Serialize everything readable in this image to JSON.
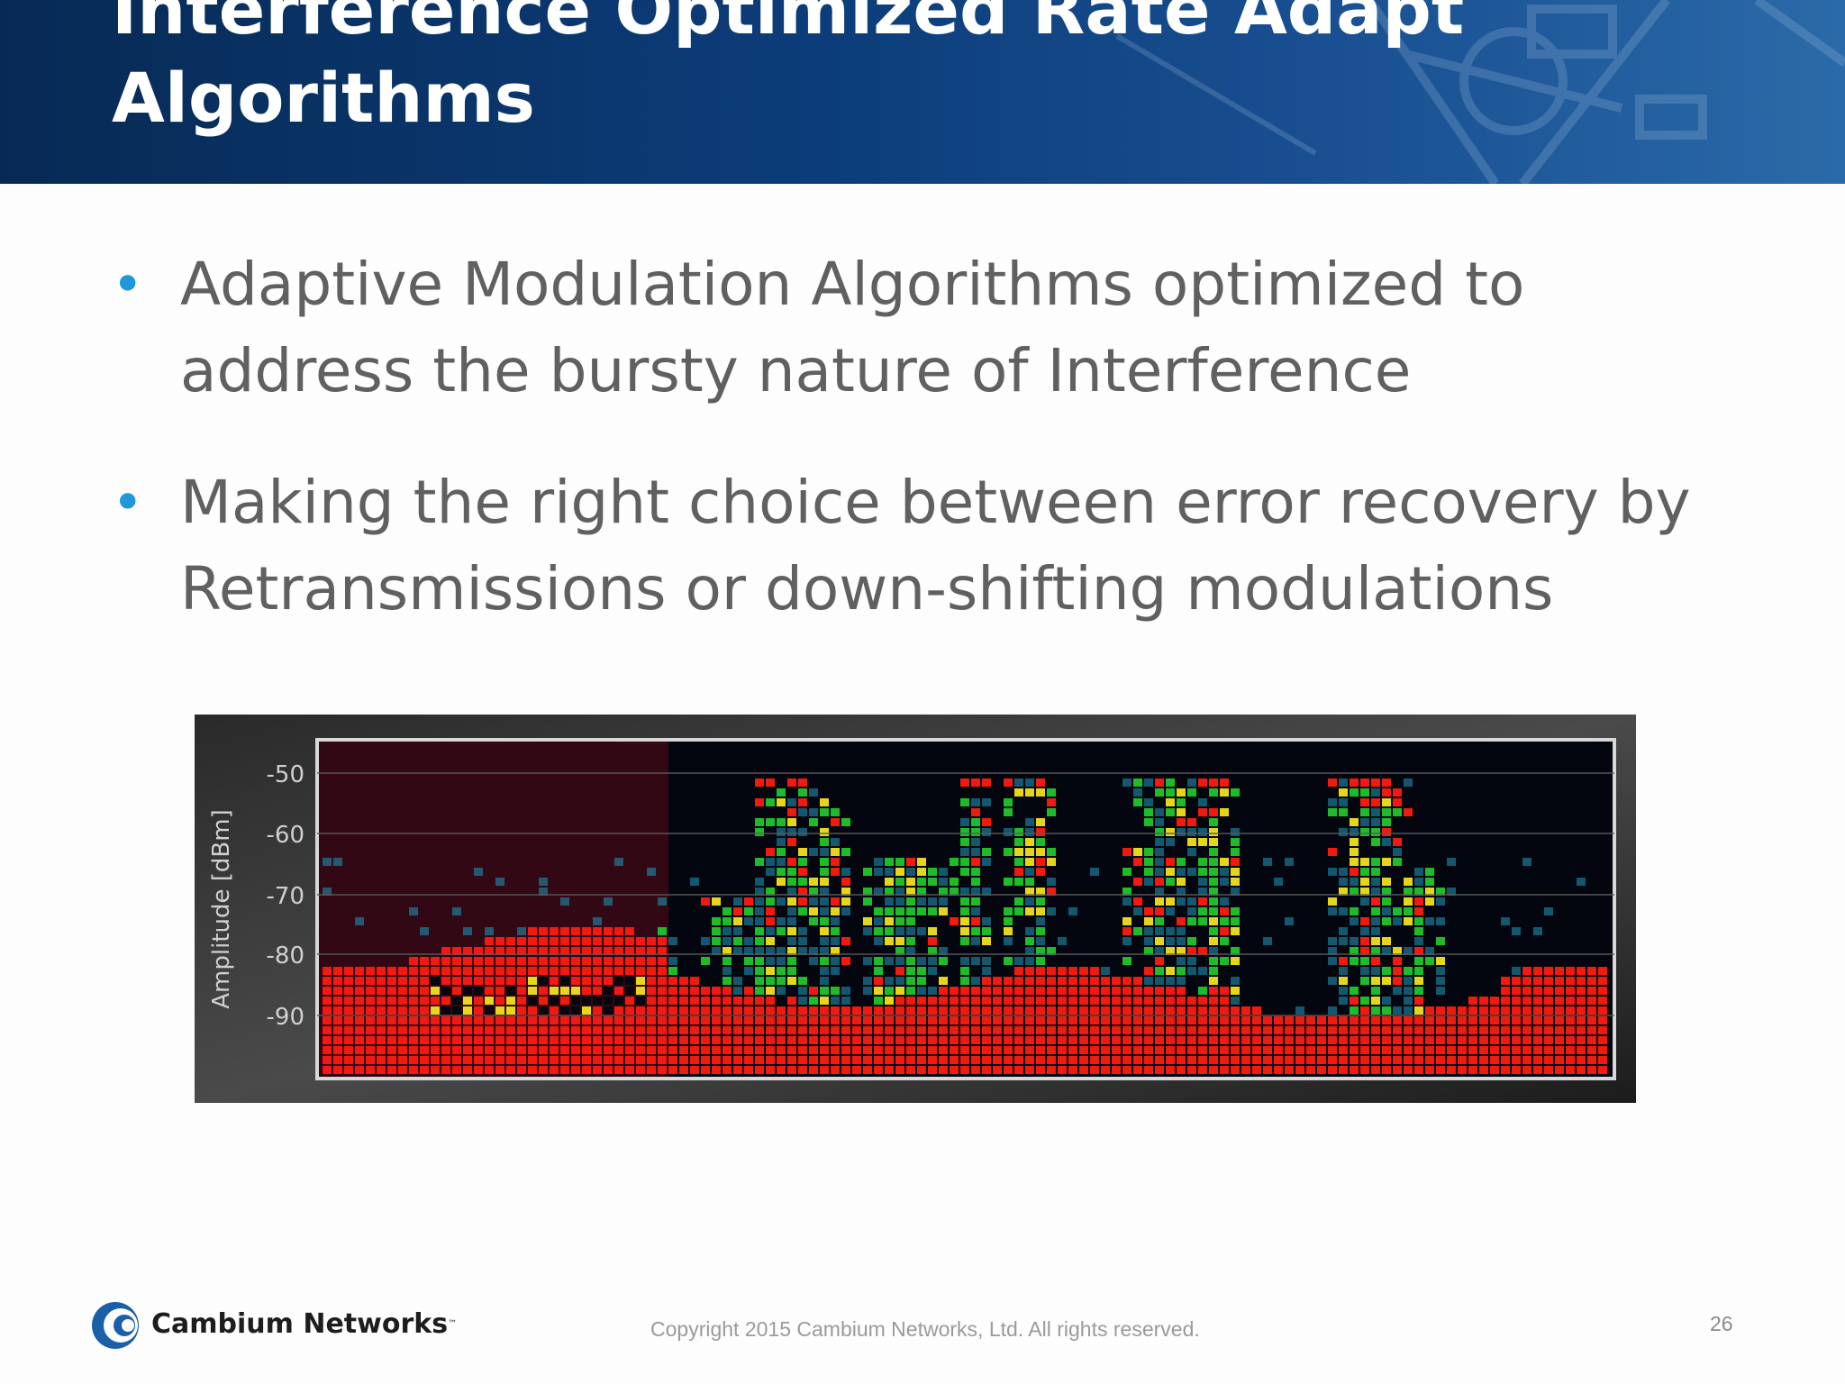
{
  "slide": {
    "title_lines": [
      "Interference Optimized Rate Adapt",
      "Algorithms"
    ],
    "bullets": [
      {
        "lines": [
          "Adaptive Modulation Algorithms optimized to",
          "address the bursty nature of Interference"
        ]
      },
      {
        "lines": [
          "Making the right choice between error recovery by",
          "Retransmissions or down-shifting modulations"
        ]
      }
    ],
    "bullet_color": "#1e98d8",
    "header_color": "#0c3d7a"
  },
  "spectrum": {
    "ylabel": "Amplitude [dBm]",
    "y_ticks": [
      "-50",
      "-60",
      "-70",
      "-80",
      "-90"
    ],
    "colors": {
      "high": "#ff1a10",
      "mid": "#f2e21a",
      "low": "#1fc62a",
      "faint": "#1e8fb0",
      "background": "#03060e"
    }
  },
  "footer": {
    "logo_text": "Cambium Networks",
    "trademark": "™",
    "copyright": "Copyright 2015 Cambium Networks, Ltd. All rights reserved.",
    "page_number": "26"
  }
}
